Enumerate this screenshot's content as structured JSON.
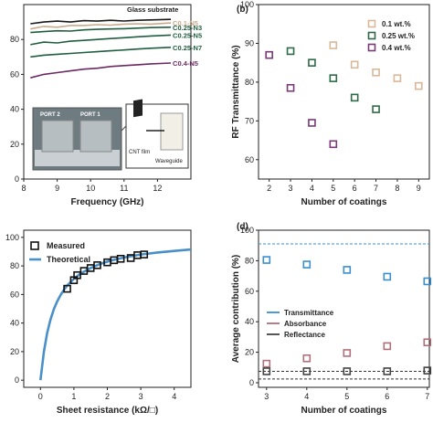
{
  "chart_data": [
    {
      "panel": "a",
      "type": "line",
      "xlabel": "Frequency (GHz)",
      "ylabel": "",
      "xlim": [
        8,
        13
      ],
      "ylim": [
        0,
        100
      ],
      "xticks": [
        8,
        9,
        10,
        11,
        12
      ],
      "yticks": [
        0,
        20,
        40,
        60,
        80
      ],
      "series": [
        {
          "name": "Glass substrate",
          "color": "#1a1a1a",
          "x": [
            8.2,
            8.6,
            9.0,
            9.4,
            9.8,
            10.2,
            10.6,
            11.0,
            11.4,
            11.8,
            12.4
          ],
          "y": [
            89,
            90,
            90.5,
            90,
            90.8,
            90.5,
            91,
            90.6,
            91,
            91.2,
            91.5
          ]
        },
        {
          "name": "C0.1-N5",
          "color": "#c9a98a",
          "x": [
            8.2,
            8.6,
            9.0,
            9.4,
            9.8,
            10.2,
            10.6,
            11.0,
            11.4,
            11.8,
            12.4
          ],
          "y": [
            86,
            87.5,
            87,
            88,
            88,
            88.5,
            88.2,
            88.8,
            89,
            88.8,
            89.5
          ]
        },
        {
          "name": "C0.25-N3",
          "color": "#1f5f3f",
          "x": [
            8.2,
            8.6,
            9.0,
            9.4,
            9.8,
            10.2,
            10.6,
            11.0,
            11.4,
            11.8,
            12.4
          ],
          "y": [
            84,
            84.5,
            85,
            84.8,
            85.5,
            85.8,
            86,
            86.2,
            86.5,
            86.8,
            87
          ]
        },
        {
          "name": "C0.25-N5",
          "color": "#1f5f3f",
          "x": [
            8.2,
            8.6,
            9.0,
            9.4,
            9.8,
            10.2,
            10.6,
            11.0,
            11.4,
            11.8,
            12.4
          ],
          "y": [
            77,
            78.5,
            78,
            79,
            79.5,
            80,
            80.5,
            81,
            81.5,
            82,
            82.5
          ]
        },
        {
          "name": "C0.25-N7",
          "color": "#1f5f3f",
          "x": [
            8.2,
            8.6,
            9.0,
            9.4,
            9.8,
            10.2,
            10.6,
            11.0,
            11.4,
            11.8,
            12.4
          ],
          "y": [
            70,
            71,
            71.5,
            72,
            72.5,
            73,
            73.5,
            74,
            74.5,
            75,
            75.5
          ]
        },
        {
          "name": "C0.4-N5",
          "color": "#6b2a63",
          "x": [
            8.2,
            8.6,
            9.0,
            9.4,
            9.8,
            10.2,
            10.6,
            11.0,
            11.4,
            11.8,
            12.4
          ],
          "y": [
            58,
            60,
            61,
            62,
            63,
            63.5,
            64.5,
            65,
            65.5,
            66,
            66.5
          ]
        }
      ],
      "inset_labels": [
        "PORT 2",
        "PORT 1",
        "CNT film",
        "Waveguide"
      ]
    },
    {
      "panel": "b",
      "type": "scatter",
      "xlabel": "Number of coatings",
      "ylabel": "RF Transmittance (%)",
      "xlim": [
        1.5,
        9.5
      ],
      "ylim": [
        55,
        100
      ],
      "xticks": [
        2,
        3,
        4,
        5,
        6,
        7,
        8,
        9
      ],
      "yticks": [
        60,
        70,
        80,
        90,
        100
      ],
      "legend": "top-right",
      "series": [
        {
          "name": "0.1 wt.%",
          "color": "#d9b89a",
          "x": [
            5,
            6,
            7,
            8,
            9
          ],
          "y": [
            89.5,
            84.5,
            82.5,
            81,
            79
          ]
        },
        {
          "name": "0.25 wt.%",
          "color": "#2e6b47",
          "x": [
            3,
            4,
            5,
            6,
            7
          ],
          "y": [
            88,
            85,
            81,
            76,
            73
          ]
        },
        {
          "name": "0.4 wt.%",
          "color": "#7a3a78",
          "x": [
            2,
            3,
            4,
            5
          ],
          "y": [
            87,
            78.5,
            69.5,
            64
          ]
        }
      ]
    },
    {
      "panel": "c",
      "type": "line",
      "xlabel": "Sheet resistance (kΩ/□)",
      "ylabel": "",
      "xlim": [
        -0.5,
        4.5
      ],
      "ylim": [
        -5,
        105
      ],
      "xticks": [
        0,
        1,
        2,
        3,
        4
      ],
      "yticks": [
        0,
        20,
        40,
        60,
        80,
        100
      ],
      "legend": "top-left",
      "series": [
        {
          "name": "Measured",
          "color": "#111111",
          "marker": "square",
          "x": [
            0.8,
            1.0,
            1.1,
            1.3,
            1.5,
            1.7,
            2.0,
            2.2,
            2.4,
            2.7,
            2.9,
            3.1
          ],
          "y": [
            64,
            70,
            73.5,
            76.5,
            78.5,
            80.5,
            82.5,
            84,
            85,
            85.5,
            87.5,
            88
          ]
        },
        {
          "name": "Theoretical",
          "color": "#4a90c8",
          "x": [
            0.0,
            0.1,
            0.2,
            0.3,
            0.4,
            0.5,
            0.6,
            0.7,
            0.8,
            1.0,
            1.2,
            1.5,
            1.8,
            2.1,
            2.5,
            3.0,
            3.5,
            4.0,
            4.5
          ],
          "y": [
            0,
            19.7,
            33.0,
            42.5,
            49.6,
            55.2,
            59.6,
            63.2,
            66.3,
            71.0,
            74.6,
            78.5,
            81.5,
            83.7,
            85.9,
            88.0,
            89.4,
            90.5,
            91.5
          ]
        }
      ]
    },
    {
      "panel": "d",
      "type": "scatter",
      "xlabel": "Number of coatings",
      "ylabel": "Average contribution (%)",
      "xlim": [
        2.8,
        7.05
      ],
      "ylim": [
        -3,
        100
      ],
      "xticks": [
        3,
        4,
        5,
        6,
        7
      ],
      "yticks": [
        0,
        20,
        40,
        60,
        80,
        100
      ],
      "legend": "center-left",
      "reference_lines": [
        {
          "value": 91,
          "color": "#3a8fd0"
        },
        {
          "value": 7.5,
          "color": "#333333"
        },
        {
          "value": 2.5,
          "color": "#333333"
        }
      ],
      "series": [
        {
          "name": "Transmittance",
          "color": "#3a8fd0",
          "x": [
            3,
            4,
            5,
            6,
            7
          ],
          "y": [
            80.5,
            77.5,
            74,
            69.5,
            66.5
          ]
        },
        {
          "name": "Absorbance",
          "color": "#b0707a",
          "x": [
            3,
            4,
            5,
            6,
            7
          ],
          "y": [
            12.5,
            16,
            19.5,
            24,
            26.5
          ]
        },
        {
          "name": "Reflectance",
          "color": "#444444",
          "x": [
            3,
            4,
            5,
            6,
            7
          ],
          "y": [
            7.5,
            7.5,
            7.5,
            7.5,
            8
          ]
        }
      ]
    }
  ],
  "panel_labels": {
    "b": "(b)",
    "d": "(d)"
  }
}
